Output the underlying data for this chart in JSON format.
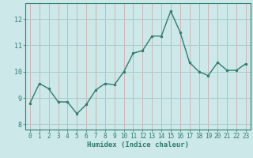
{
  "x": [
    0,
    1,
    2,
    3,
    4,
    5,
    6,
    7,
    8,
    9,
    10,
    11,
    12,
    13,
    14,
    15,
    16,
    17,
    18,
    19,
    20,
    21,
    22,
    23
  ],
  "y": [
    8.8,
    9.55,
    9.35,
    8.85,
    8.85,
    8.4,
    8.75,
    9.3,
    9.55,
    9.5,
    10.0,
    10.7,
    10.8,
    11.35,
    11.35,
    12.3,
    11.5,
    10.35,
    10.0,
    9.85,
    10.35,
    10.05,
    10.05,
    10.3
  ],
  "xlabel": "Humidex (Indice chaleur)",
  "ylim": [
    7.8,
    12.6
  ],
  "xlim": [
    -0.5,
    23.5
  ],
  "yticks": [
    8,
    9,
    10,
    11,
    12
  ],
  "xticks": [
    0,
    1,
    2,
    3,
    4,
    5,
    6,
    7,
    8,
    9,
    10,
    11,
    12,
    13,
    14,
    15,
    16,
    17,
    18,
    19,
    20,
    21,
    22,
    23
  ],
  "line_color": "#2e7d6e",
  "marker_color": "#2e7d6e",
  "bg_color": "#cce8e8",
  "grid_major_color": "#aacece",
  "grid_minor_color": "#d4a0a0",
  "axis_color": "#2e7d6e",
  "tick_label_color": "#2e7d6e",
  "xlabel_color": "#2e7d6e",
  "xlabel_fontsize": 6.5,
  "tick_fontsize": 5.5,
  "line_width": 1.0,
  "marker_size": 2.0
}
